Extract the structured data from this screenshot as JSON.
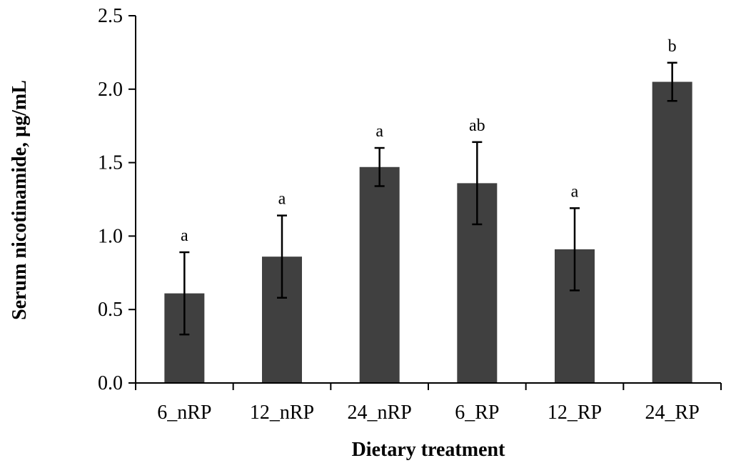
{
  "chart_data": {
    "type": "bar",
    "title": "",
    "xlabel": "Dietary treatment",
    "ylabel": "Serum nicotinamide, µg/mL",
    "categories": [
      "6_nRP",
      "12_nRP",
      "24_nRP",
      "6_RP",
      "12_RP",
      "24_RP"
    ],
    "values": [
      0.61,
      0.86,
      1.47,
      1.36,
      0.91,
      2.05
    ],
    "errors": [
      0.28,
      0.28,
      0.13,
      0.28,
      0.28,
      0.13
    ],
    "significance_labels": [
      "a",
      "a",
      "a",
      "ab",
      "a",
      "b"
    ],
    "ylim": [
      0,
      2.5
    ],
    "yticks": [
      0.0,
      0.5,
      1.0,
      1.5,
      2.0,
      2.5
    ],
    "ytick_labels": [
      "0.0",
      "0.5",
      "1.0",
      "1.5",
      "2.0",
      "2.5"
    ],
    "grid": false,
    "legend": "none",
    "bar_color": "#404040",
    "axis_color": "#000000"
  }
}
